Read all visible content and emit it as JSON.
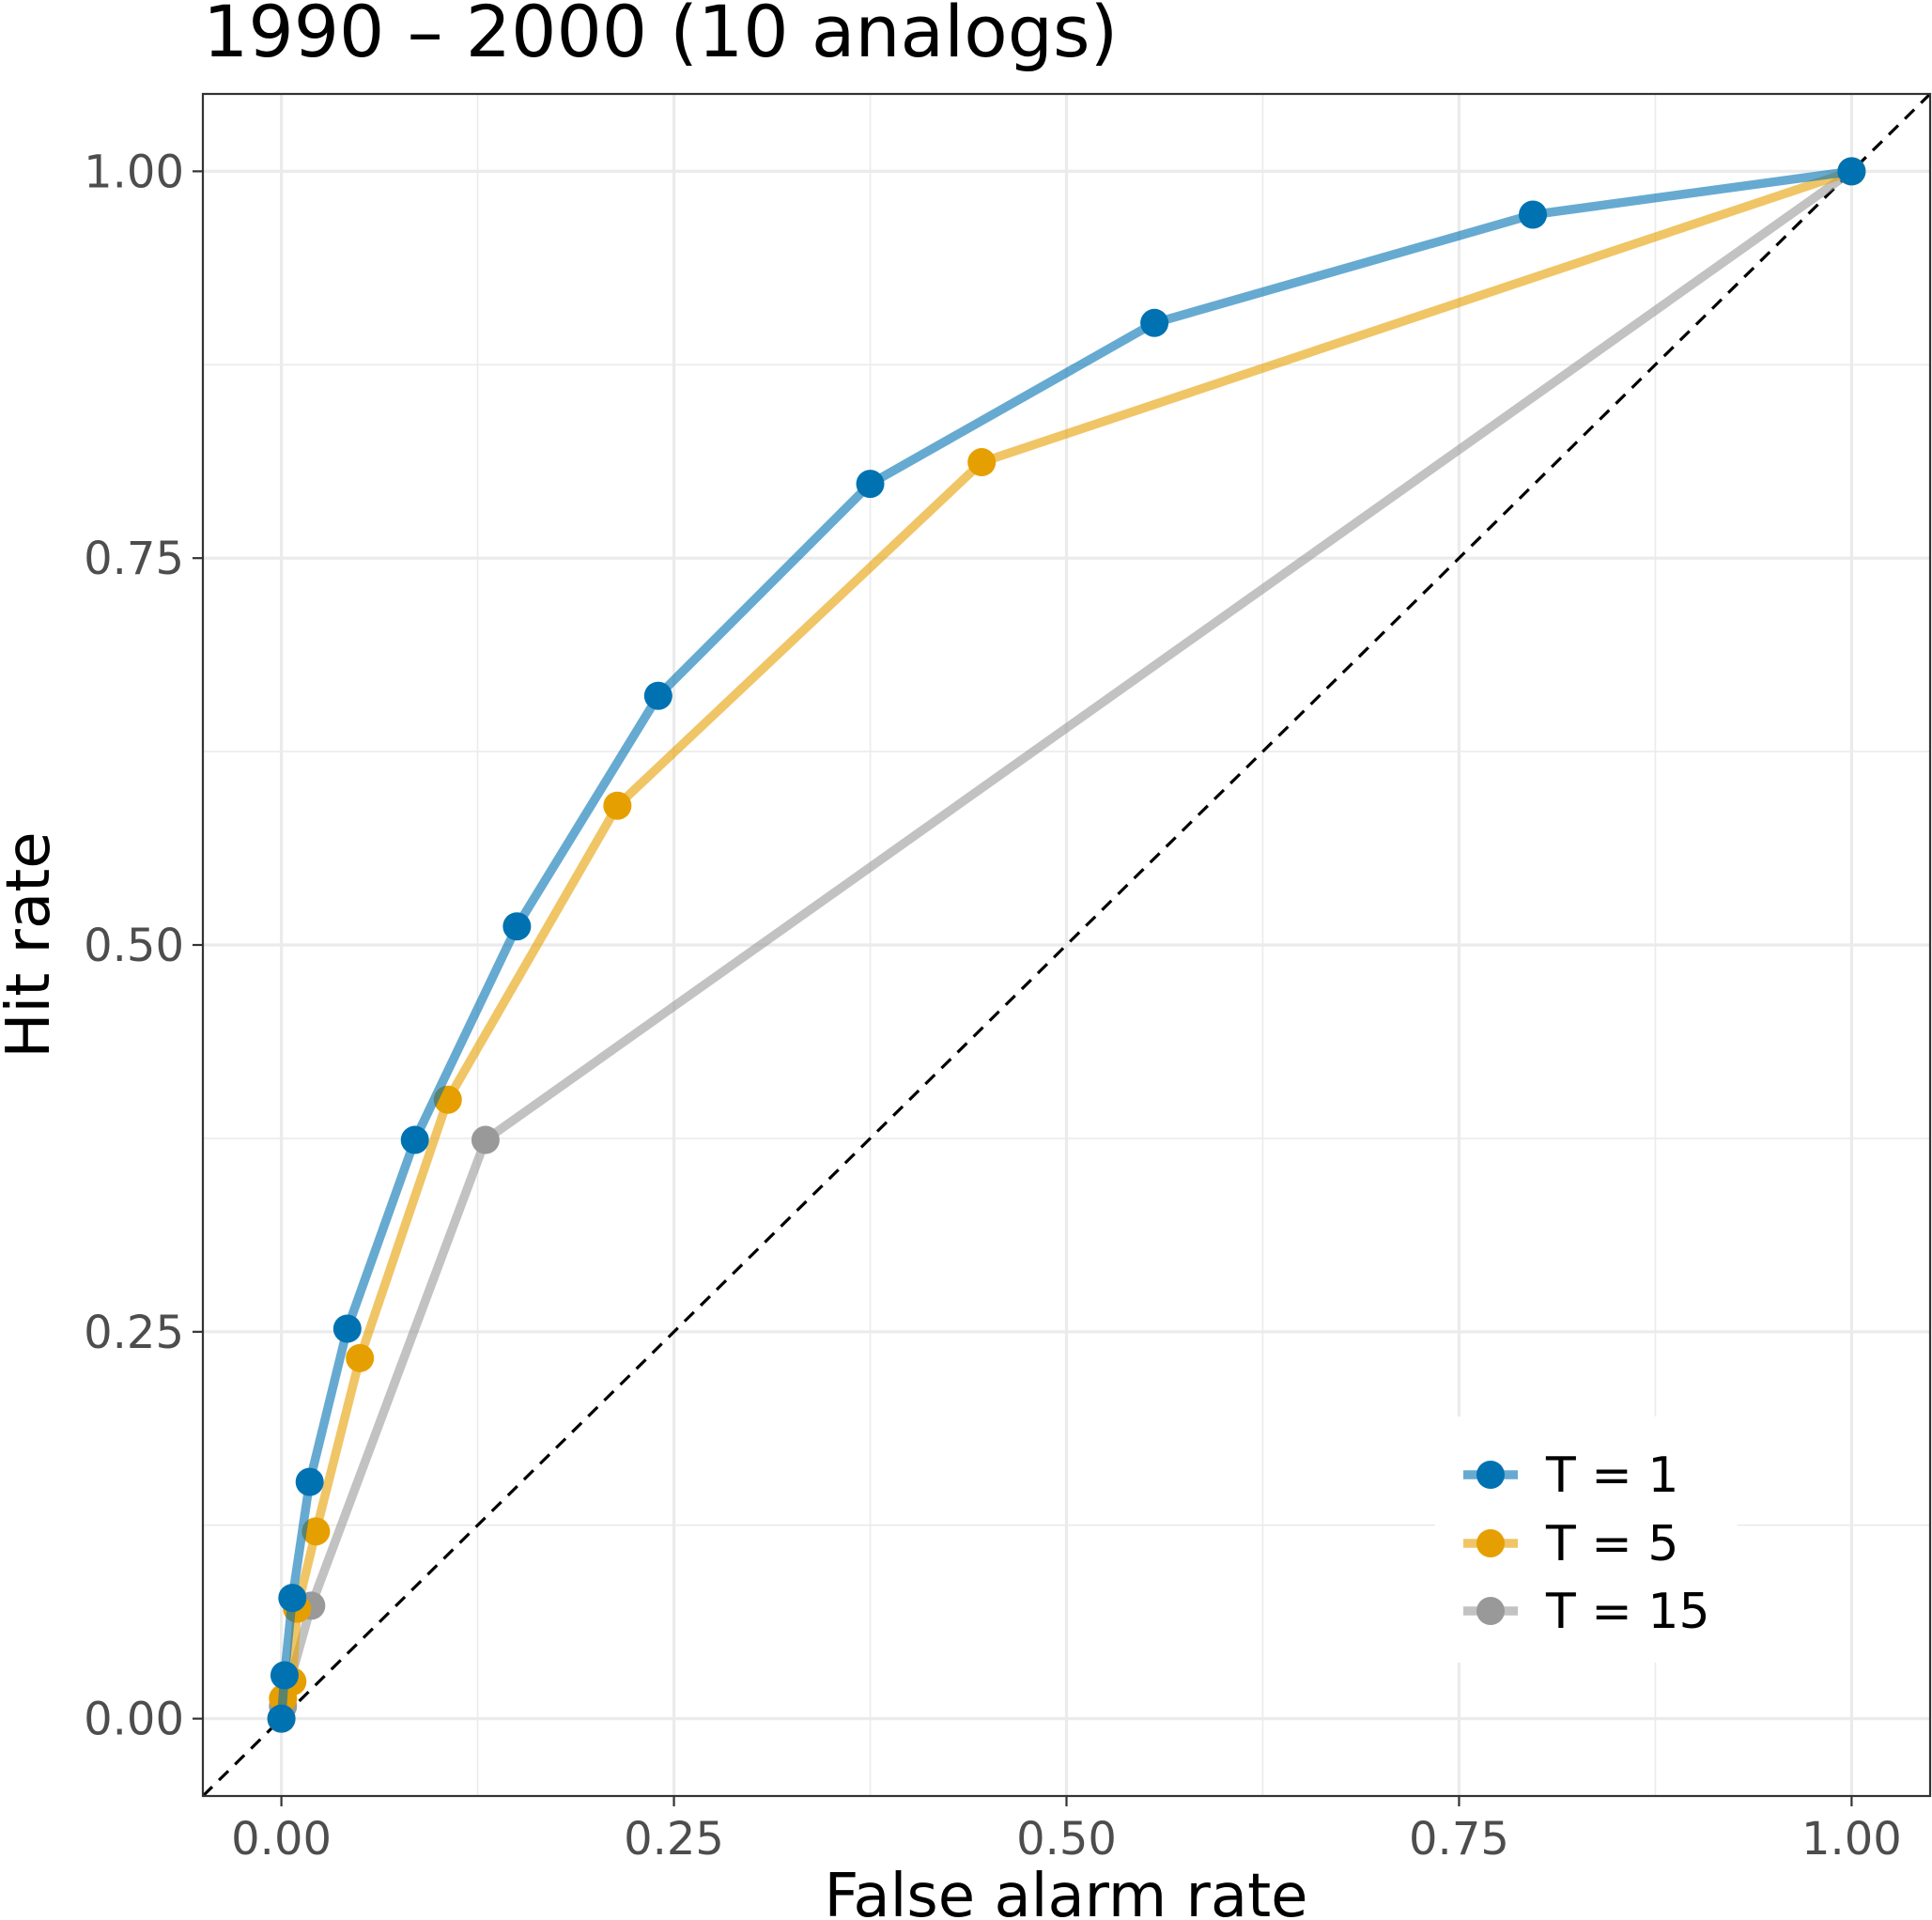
{
  "chart_data": {
    "type": "line",
    "title": "1990 – 2000 (10 analogs)",
    "xlabel": "False alarm rate",
    "ylabel": "Hit rate",
    "xlim": [
      -0.05,
      1.05
    ],
    "ylim": [
      -0.05,
      1.05
    ],
    "x_ticks": [
      0,
      0.25,
      0.5,
      0.75,
      1
    ],
    "y_ticks": [
      0,
      0.25,
      0.5,
      0.75,
      1
    ],
    "x_tick_labels": [
      "0.00",
      "0.25",
      "0.50",
      "0.75",
      "1.00"
    ],
    "y_tick_labels": [
      "0.00",
      "0.25",
      "0.50",
      "0.75",
      "1.00"
    ],
    "grid": true,
    "reference_line": {
      "style": "dashed",
      "from": [
        -0.05,
        -0.05
      ],
      "to": [
        1.05,
        1.05
      ],
      "color": "#000000"
    },
    "legend_position": "bottom-right",
    "series": [
      {
        "name": "T = 1",
        "color": "#0072b2",
        "points": [
          [
            0,
            0
          ],
          [
            0.002,
            0.028
          ],
          [
            0.007,
            0.078
          ],
          [
            0.018,
            0.153
          ],
          [
            0.042,
            0.252
          ],
          [
            0.085,
            0.374
          ],
          [
            0.15,
            0.512
          ],
          [
            0.24,
            0.661
          ],
          [
            0.375,
            0.798
          ],
          [
            0.556,
            0.902
          ],
          [
            0.797,
            0.972
          ],
          [
            1,
            1
          ]
        ]
      },
      {
        "name": "T = 5",
        "color": "#e69f00",
        "points": [
          [
            0,
            0
          ],
          [
            0.001,
            0.013
          ],
          [
            0.007,
            0.024
          ],
          [
            0.01,
            0.071
          ],
          [
            0.022,
            0.121
          ],
          [
            0.05,
            0.233
          ],
          [
            0.106,
            0.4
          ],
          [
            0.214,
            0.59
          ],
          [
            0.446,
            0.812
          ],
          [
            1,
            1
          ]
        ]
      },
      {
        "name": "T = 15",
        "color": "#999999",
        "points": [
          [
            0,
            0
          ],
          [
            0.001,
            0.008
          ],
          [
            0.019,
            0.073
          ],
          [
            0.13,
            0.374
          ],
          [
            1,
            1
          ]
        ]
      }
    ]
  }
}
